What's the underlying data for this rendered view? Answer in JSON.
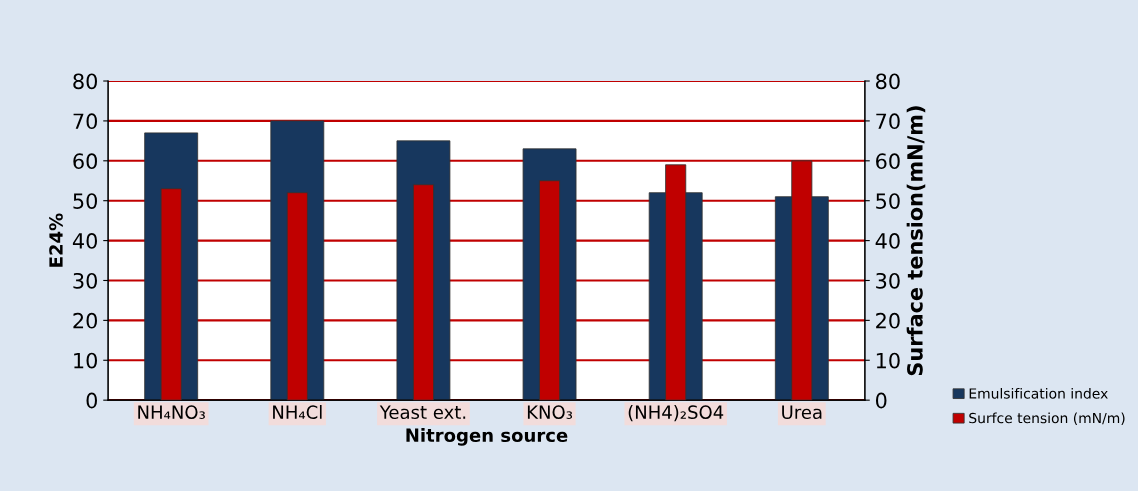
{
  "chart_data": {
    "type": "bar",
    "xlabel": "Nitrogen source",
    "ylabel": "E24%",
    "y2label": "Surface tension(mN/m)",
    "categories": [
      "NH₄NO₃",
      "NH₄Cl",
      "Yeast ext.",
      "KNO₃",
      "(NH4)₂SO4",
      "Urea"
    ],
    "series": [
      {
        "name": "Emulsification index",
        "color": "#17375e",
        "values": [
          67,
          70,
          65,
          63,
          52,
          51
        ]
      },
      {
        "name": "Surfce tension (mN/m)",
        "color": "#c00000",
        "axis": "y2",
        "values": [
          53,
          52,
          54,
          55,
          59,
          60
        ]
      }
    ],
    "ylim": [
      0,
      80
    ],
    "yticks": [
      0,
      10,
      20,
      30,
      40,
      50,
      60,
      70,
      80
    ],
    "y2lim": [
      0,
      80
    ],
    "y2ticks": [
      0,
      10,
      20,
      30,
      40,
      50,
      60,
      70,
      80
    ],
    "grid": "y",
    "legend": "right"
  }
}
